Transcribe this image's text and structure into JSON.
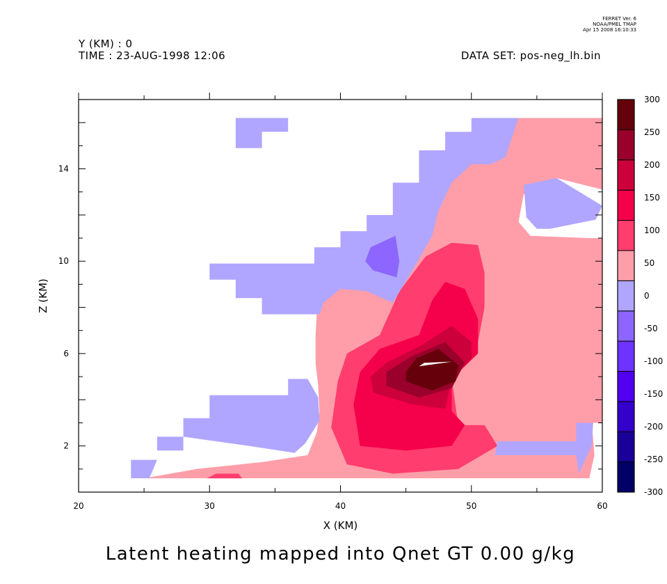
{
  "header": {
    "y_info": "Y (KM) : 0",
    "time_info": "TIME : 23-AUG-1998 12:06",
    "dataset": "DATA SET: pos-neg_lh.bin",
    "ferret_line1": "FERRET Ver. 6",
    "ferret_line2": "NOAA/PMEL TMAP",
    "ferret_line3": "Apr 15 2008 16:10:33"
  },
  "bottom_title": "Latent heating mapped into Qnet GT 0.00 g/kg",
  "chart_data": {
    "type": "heatmap",
    "title": "Latent heating mapped into Qnet GT 0.00 g/kg",
    "xlabel": "X (KM)",
    "ylabel": "Z (KM)",
    "xlim": [
      20,
      60
    ],
    "ylim": [
      0,
      17
    ],
    "x_ticks": [
      20,
      30,
      40,
      50,
      60
    ],
    "y_ticks": [
      2,
      6,
      10,
      14
    ],
    "grid": false,
    "colorbar": {
      "levels": [
        -300,
        -250,
        -200,
        -150,
        -100,
        -50,
        0,
        50,
        100,
        150,
        200,
        250,
        300
      ],
      "colors": [
        "#000066",
        "#1a0099",
        "#3300cc",
        "#5200f0",
        "#6e33ff",
        "#8c66ff",
        "#b0a6ff",
        "#ff9ea9",
        "#ff3d6e",
        "#f5004a",
        "#cc003a",
        "#99002b",
        "#66000a"
      ]
    },
    "regions": [
      {
        "level": "0 to 50",
        "color": "#ff9ea9",
        "points": [
          [
            25,
            0.6
          ],
          [
            27,
            0.8
          ],
          [
            29,
            1.0
          ],
          [
            34,
            1.3
          ],
          [
            37.5,
            1.6
          ],
          [
            38.2,
            2.6
          ],
          [
            38.4,
            3.5
          ],
          [
            38.3,
            4.6
          ],
          [
            38.1,
            5.6
          ],
          [
            38.1,
            6.8
          ],
          [
            38.2,
            7.8
          ],
          [
            38.7,
            8.9
          ],
          [
            39.3,
            9.7
          ],
          [
            41.5,
            10.7
          ],
          [
            44,
            11.2
          ],
          [
            46,
            11.8
          ],
          [
            47,
            12.8
          ],
          [
            48,
            13.7
          ],
          [
            49,
            14.2
          ],
          [
            51,
            14.7
          ],
          [
            53,
            15.5
          ],
          [
            53.6,
            16.2
          ],
          [
            60,
            16.2
          ],
          [
            60,
            13.1
          ],
          [
            56.5,
            13.6
          ],
          [
            54,
            12.9
          ],
          [
            53.6,
            11.7
          ],
          [
            54.5,
            11.1
          ],
          [
            59,
            11.0
          ],
          [
            60,
            11.0
          ],
          [
            60,
            3.0
          ],
          [
            59.2,
            3.0
          ],
          [
            59.4,
            1.6
          ],
          [
            59,
            0.6
          ]
        ]
      },
      {
        "level": "50 to 100",
        "color": "#ff3d6e",
        "points": [
          [
            40.5,
            1.2
          ],
          [
            44,
            0.8
          ],
          [
            49,
            1.0
          ],
          [
            52,
            2.0
          ],
          [
            51,
            2.9
          ],
          [
            49,
            2.9
          ],
          [
            48.5,
            4.9
          ],
          [
            50.5,
            6.5
          ],
          [
            51,
            8.0
          ],
          [
            51,
            9.5
          ],
          [
            50.5,
            10.7
          ],
          [
            48.5,
            10.8
          ],
          [
            46.5,
            10.2
          ],
          [
            44.5,
            8.7
          ],
          [
            43,
            6.8
          ],
          [
            40.5,
            6.0
          ],
          [
            39.8,
            4.8
          ],
          [
            39.3,
            2.8
          ]
        ]
      },
      {
        "level": "100 to 150",
        "color": "#f5004a",
        "points": [
          [
            41.5,
            2.0
          ],
          [
            45,
            1.8
          ],
          [
            48.5,
            2.0
          ],
          [
            49.5,
            2.9
          ],
          [
            48.5,
            3.5
          ],
          [
            48.5,
            4.9
          ],
          [
            50.5,
            6.0
          ],
          [
            50.5,
            7.5
          ],
          [
            49.5,
            8.8
          ],
          [
            48,
            9.1
          ],
          [
            47,
            8.3
          ],
          [
            46,
            6.8
          ],
          [
            43,
            6.2
          ],
          [
            41.5,
            5.2
          ],
          [
            41,
            3.8
          ]
        ]
      },
      {
        "level": "150 to 200",
        "color": "#cc003a",
        "points": [
          [
            42.5,
            4.3
          ],
          [
            45.5,
            3.8
          ],
          [
            48,
            3.6
          ],
          [
            48.5,
            4.9
          ],
          [
            50,
            5.8
          ],
          [
            50,
            6.5
          ],
          [
            48.5,
            7.2
          ],
          [
            46,
            6.3
          ],
          [
            43.5,
            5.6
          ],
          [
            42.3,
            5.0
          ]
        ]
      },
      {
        "level": "200 to 250",
        "color": "#99002b",
        "points": [
          [
            43.5,
            4.6
          ],
          [
            46,
            4.1
          ],
          [
            48.5,
            4.5
          ],
          [
            49.5,
            5.6
          ],
          [
            48,
            6.5
          ],
          [
            45.5,
            5.9
          ],
          [
            43.5,
            5.2
          ]
        ]
      },
      {
        "level": "250 to 300",
        "color": "#66000a",
        "points": [
          [
            45,
            4.8
          ],
          [
            47,
            4.4
          ],
          [
            48.8,
            4.8
          ],
          [
            49,
            5.5
          ],
          [
            47.5,
            6.2
          ],
          [
            45.8,
            5.8
          ],
          [
            45,
            5.2
          ]
        ]
      },
      {
        "level": "above 300",
        "color": "#ffffff",
        "points": [
          [
            46,
            5.45
          ],
          [
            48.5,
            5.65
          ],
          [
            46.4,
            5.6
          ]
        ]
      },
      {
        "level": "-50 to 0",
        "color": "#b0a6ff",
        "points": [
          [
            24,
            0.6
          ],
          [
            25.4,
            0.6
          ],
          [
            26,
            1.4
          ],
          [
            24,
            1.4
          ]
        ]
      },
      {
        "level": "-50 to 0",
        "color": "#b0a6ff",
        "points": [
          [
            26,
            1.8
          ],
          [
            28,
            1.8
          ],
          [
            28,
            3.2
          ],
          [
            30,
            3.2
          ],
          [
            30,
            4.2
          ],
          [
            36,
            4.2
          ],
          [
            36,
            4.9
          ],
          [
            37.5,
            4.9
          ],
          [
            38.3,
            4.1
          ],
          [
            38.4,
            3.1
          ],
          [
            37.3,
            2.1
          ],
          [
            36.5,
            1.7
          ],
          [
            33,
            2.0
          ],
          [
            28,
            2.4
          ],
          [
            26,
            2.4
          ]
        ]
      },
      {
        "level": "-50 to 0",
        "color": "#b0a6ff",
        "points": [
          [
            30,
            9.2
          ],
          [
            30,
            9.9
          ],
          [
            38,
            9.9
          ],
          [
            38,
            10.6
          ],
          [
            40,
            10.6
          ],
          [
            40,
            11.3
          ],
          [
            42,
            11.3
          ],
          [
            42,
            12.0
          ],
          [
            44,
            12.0
          ],
          [
            44,
            13.4
          ],
          [
            46,
            13.4
          ],
          [
            46,
            14.8
          ],
          [
            48,
            14.8
          ],
          [
            48,
            15.6
          ],
          [
            50,
            15.6
          ],
          [
            50,
            16.2
          ],
          [
            53.6,
            16.2
          ],
          [
            52.6,
            14.5
          ],
          [
            51.5,
            14.2
          ],
          [
            50,
            14.2
          ],
          [
            48.5,
            13.4
          ],
          [
            47.5,
            12.2
          ],
          [
            47,
            11.1
          ],
          [
            45.5,
            9.6
          ],
          [
            44,
            8.2
          ],
          [
            42,
            8.7
          ],
          [
            40,
            8.8
          ],
          [
            38.7,
            8.2
          ],
          [
            38.4,
            7.7
          ],
          [
            34,
            7.7
          ],
          [
            34,
            8.4
          ],
          [
            32,
            8.4
          ],
          [
            32,
            9.2
          ]
        ]
      },
      {
        "level": "-50 to 0",
        "color": "#b0a6ff",
        "points": [
          [
            32,
            14.9
          ],
          [
            32,
            16.2
          ],
          [
            36,
            16.2
          ],
          [
            36,
            15.6
          ],
          [
            34,
            15.6
          ],
          [
            34,
            14.9
          ]
        ]
      },
      {
        "level": "-50 to 0",
        "color": "#b0a6ff",
        "points": [
          [
            54.2,
            11.9
          ],
          [
            54,
            13.3
          ],
          [
            56.5,
            13.6
          ],
          [
            60,
            12.4
          ],
          [
            59.5,
            11.8
          ],
          [
            56,
            11.4
          ],
          [
            55,
            11.4
          ]
        ]
      },
      {
        "level": "-50 to 0",
        "color": "#b0a6ff",
        "points": [
          [
            51.8,
            1.6
          ],
          [
            58,
            1.6
          ],
          [
            58.2,
            0.8
          ],
          [
            59.2,
            2.0
          ],
          [
            59.3,
            3.0
          ],
          [
            58,
            3.0
          ],
          [
            58,
            2.2
          ],
          [
            52,
            2.2
          ]
        ]
      },
      {
        "level": "-100 to -50",
        "color": "#8c66ff",
        "points": [
          [
            41.9,
            10.0
          ],
          [
            42.3,
            10.6
          ],
          [
            44.2,
            11.1
          ],
          [
            44.5,
            10.0
          ],
          [
            44.3,
            9.3
          ],
          [
            42.5,
            9.6
          ]
        ]
      },
      {
        "level": "0 to 50",
        "color": "#ff9ea9",
        "points": [
          [
            30,
            0.6
          ],
          [
            32.5,
            0.6
          ],
          [
            32.5,
            0.8
          ],
          [
            30,
            0.8
          ]
        ]
      },
      {
        "level": "50 to 100",
        "color": "#ff3d6e",
        "points": [
          [
            29.8,
            0.6
          ],
          [
            32.5,
            0.6
          ],
          [
            32.2,
            0.8
          ],
          [
            30.5,
            0.8
          ]
        ]
      }
    ]
  },
  "colorbar_labels": [
    "300",
    "250",
    "200",
    "150",
    "100",
    "50",
    "0",
    "-50",
    "-100",
    "-150",
    "-200",
    "-250",
    "-300"
  ]
}
